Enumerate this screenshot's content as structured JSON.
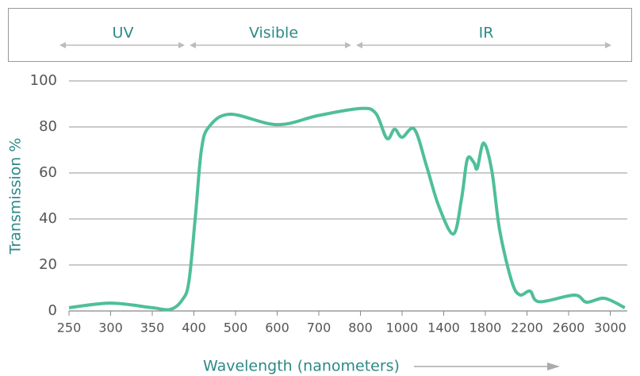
{
  "chart_data": {
    "type": "line",
    "bands": [
      "UV",
      "Visible",
      "IR"
    ],
    "ylabel": "Transmission %",
    "xlabel": "Wavelength (nanometers)",
    "x": [
      250,
      300,
      350,
      372,
      386,
      394,
      404,
      418,
      436,
      487,
      600,
      700,
      800,
      873,
      927,
      964,
      1000,
      1118,
      1235,
      1353,
      1494,
      1572,
      1627,
      1690,
      1722,
      1784,
      1862,
      1938,
      2054,
      2131,
      2230,
      2318,
      2655,
      2773,
      2945,
      3140
    ],
    "series": [
      {
        "name": "Transmission",
        "color": "#4fbf98",
        "values": [
          1.4,
          3.4,
          1.4,
          0.7,
          4.8,
          12.8,
          42,
          70,
          80,
          85.5,
          81,
          85,
          88,
          86,
          75,
          79,
          75.5,
          79,
          63,
          45.5,
          33.5,
          49,
          66,
          64.5,
          62,
          73,
          61,
          35,
          12.8,
          7,
          8.6,
          4,
          6.9,
          3.8,
          5.5,
          1.4
        ]
      }
    ],
    "xlim": [
      250,
      3140
    ],
    "xticks": [
      250,
      300,
      350,
      400,
      500,
      600,
      700,
      800,
      1000,
      1400,
      1800,
      2200,
      2600,
      3000
    ],
    "ylim": [
      0,
      100
    ],
    "yticks": [
      0,
      20,
      40,
      60,
      80,
      100
    ],
    "grid": true
  }
}
